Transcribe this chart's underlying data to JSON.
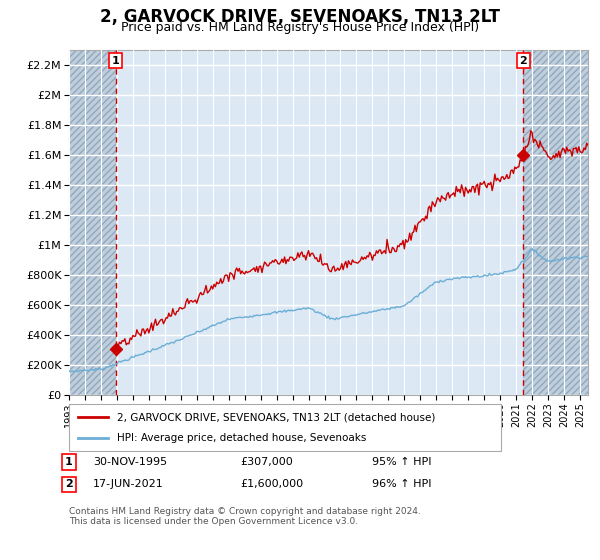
{
  "title": "2, GARVOCK DRIVE, SEVENOAKS, TN13 2LT",
  "subtitle": "Price paid vs. HM Land Registry's House Price Index (HPI)",
  "legend_line1": "2, GARVOCK DRIVE, SEVENOAKS, TN13 2LT (detached house)",
  "legend_line2": "HPI: Average price, detached house, Sevenoaks",
  "point1_date": "30-NOV-1995",
  "point1_price": "£307,000",
  "point1_hpi": "95% ↑ HPI",
  "point1_year": 1995.92,
  "point1_value": 307000,
  "point2_date": "17-JUN-2021",
  "point2_price": "£1,600,000",
  "point2_hpi": "96% ↑ HPI",
  "point2_year": 2021.46,
  "point2_value": 1600000,
  "footer": "Contains HM Land Registry data © Crown copyright and database right 2024.\nThis data is licensed under the Open Government Licence v3.0.",
  "ylim": [
    0,
    2300000
  ],
  "xlim": [
    1993.0,
    2025.5
  ],
  "hatch_left_end": 1995.92,
  "hatch_right_start": 2021.46,
  "red_line_color": "#cc0000",
  "blue_line_color": "#6baed6",
  "plot_bg": "#dce9f5",
  "grid_color": "#ffffff",
  "vline_color": "#cc0000",
  "title_fontsize": 12,
  "subtitle_fontsize": 9,
  "ytick_labels": [
    "£0",
    "£200K",
    "£400K",
    "£600K",
    "£800K",
    "£1M",
    "£1.2M",
    "£1.4M",
    "£1.6M",
    "£1.8M",
    "£2M",
    "£2.2M"
  ],
  "ytick_values": [
    0,
    200000,
    400000,
    600000,
    800000,
    1000000,
    1200000,
    1400000,
    1600000,
    1800000,
    2000000,
    2200000
  ],
  "xtick_years": [
    1993,
    1994,
    1995,
    1996,
    1997,
    1998,
    1999,
    2000,
    2001,
    2002,
    2003,
    2004,
    2005,
    2006,
    2007,
    2008,
    2009,
    2010,
    2011,
    2012,
    2013,
    2014,
    2015,
    2016,
    2017,
    2018,
    2019,
    2020,
    2021,
    2022,
    2023,
    2024,
    2025
  ]
}
